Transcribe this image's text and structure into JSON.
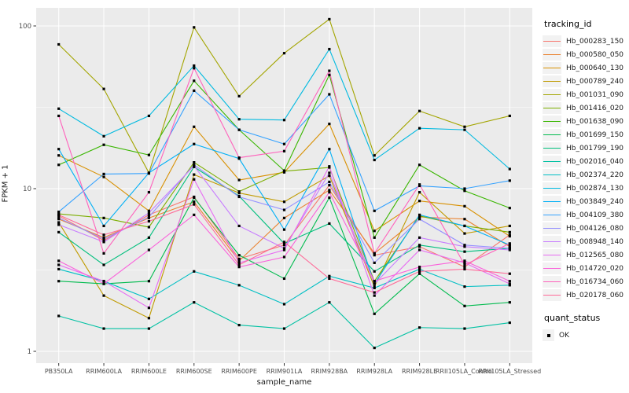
{
  "figure": {
    "xlabel": "sample_name",
    "ylabel": "FPKM + 1"
  },
  "legend": {
    "tracking_title": "tracking_id",
    "quant_title": "quant_status",
    "quant_items": [
      {
        "label": "OK",
        "marker": "black-square"
      }
    ]
  },
  "colors": {
    "panel_bg": "#EBEBEB",
    "grid": "#FFFFFF",
    "tick": "#333333",
    "tick_label": "#4D4D4D",
    "point": "#000000",
    "legend_key_bg": "#F2F2F2"
  },
  "chart_data": {
    "type": "line",
    "title": "",
    "xlabel": "sample_name",
    "ylabel": "FPKM + 1",
    "y_scale": "log10",
    "y_ticks": [
      1,
      10,
      100
    ],
    "y_minor_ticks": [
      3.162,
      31.62
    ],
    "ylim": [
      0.95,
      130
    ],
    "grid": "on",
    "legend_position": "right",
    "point_shape": "small black square (quant_status = OK at every point)",
    "x_categories": [
      "PB350LA",
      "RRIM600LA",
      "RRIM600LE",
      "RRIM600SE",
      "RRIM600PE",
      "RRIM901LA",
      "RRIM928BA",
      "RRIM928LA",
      "RRIM928LE",
      "RRII105LA_Control",
      "RRII105LA_Stressed"
    ],
    "series": [
      {
        "name": "Hb_000283_150",
        "color": "#F8766D",
        "values": [
          6.8,
          4.8,
          6.9,
          8.9,
          3.7,
          4.5,
          10.5,
          3.9,
          4.4,
          3.3,
          5.2
        ]
      },
      {
        "name": "Hb_000580_050",
        "color": "#EA8331",
        "values": [
          6.5,
          5.0,
          6.6,
          8.3,
          3.6,
          6.6,
          9.8,
          4.0,
          6.7,
          6.5,
          4.4
        ]
      },
      {
        "name": "Hb_000640_130",
        "color": "#D89000",
        "values": [
          16,
          11.8,
          7.3,
          24,
          11.3,
          12.6,
          25,
          5.5,
          8.4,
          7.8,
          5.1
        ]
      },
      {
        "name": "Hb_000789_240",
        "color": "#C09B00",
        "values": [
          6.2,
          2.2,
          1.6,
          12.2,
          9.4,
          8.3,
          12,
          2.5,
          9.5,
          5.3,
          5.9
        ]
      },
      {
        "name": "Hb_001031_090",
        "color": "#A3A500",
        "values": [
          77,
          41,
          12.5,
          98,
          37,
          68,
          110,
          16,
          30,
          24,
          28
        ]
      },
      {
        "name": "Hb_001416_020",
        "color": "#7CAE00",
        "values": [
          7.0,
          6.6,
          5.8,
          14.5,
          9.6,
          12.8,
          13.5,
          2.7,
          6.8,
          5.9,
          5.4
        ]
      },
      {
        "name": "Hb_001638_090",
        "color": "#39B600",
        "values": [
          14,
          18.6,
          16.1,
          46,
          23,
          12.9,
          50,
          5.0,
          14,
          9.7,
          7.6
        ]
      },
      {
        "name": "Hb_001699_150",
        "color": "#00BB4E",
        "values": [
          2.7,
          2.6,
          2.7,
          8.8,
          3.9,
          2.8,
          8.8,
          1.7,
          3.0,
          1.9,
          2.0
        ]
      },
      {
        "name": "Hb_001799_190",
        "color": "#00BF7D",
        "values": [
          5.4,
          3.4,
          5.0,
          13.6,
          9.0,
          4.6,
          6.1,
          3.1,
          4.5,
          4.1,
          4.3
        ]
      },
      {
        "name": "Hb_002016_040",
        "color": "#00C1A3",
        "values": [
          1.65,
          1.38,
          1.38,
          2.0,
          1.45,
          1.38,
          2.0,
          1.05,
          1.4,
          1.38,
          1.5
        ]
      },
      {
        "name": "Hb_002374_220",
        "color": "#00BFC4",
        "values": [
          3.2,
          2.7,
          2.1,
          3.1,
          2.55,
          1.95,
          2.9,
          2.45,
          3.2,
          2.5,
          2.55
        ]
      },
      {
        "name": "Hb_002874_130",
        "color": "#00BAE0",
        "values": [
          31,
          21,
          28,
          57,
          26.7,
          26.4,
          72,
          15,
          23.5,
          23,
          13.2
        ]
      },
      {
        "name": "Hb_003849_240",
        "color": "#00B0F6",
        "values": [
          17.5,
          5.9,
          12.5,
          18.8,
          15.3,
          5.6,
          17.5,
          2.6,
          6.9,
          5.9,
          4.5
        ]
      },
      {
        "name": "Hb_004109_380",
        "color": "#35A2FF",
        "values": [
          7.2,
          12.3,
          12.4,
          40,
          23,
          18.8,
          38,
          7.3,
          10.4,
          10,
          11.2
        ]
      },
      {
        "name": "Hb_004126_080",
        "color": "#9590FF",
        "values": [
          6.6,
          4.9,
          6.7,
          14,
          8.9,
          7.4,
          11,
          3.5,
          6.5,
          4.5,
          4.3
        ]
      },
      {
        "name": "Hb_008948_140",
        "color": "#C77CFF",
        "values": [
          6.0,
          4.7,
          7.1,
          13.8,
          5.9,
          4.3,
          12.5,
          2.6,
          5.0,
          4.4,
          4.2
        ]
      },
      {
        "name": "Hb_012565_080",
        "color": "#E76BF3",
        "values": [
          3.4,
          2.7,
          1.85,
          11.4,
          3.5,
          4.2,
          13.7,
          2.2,
          4.2,
          3.5,
          2.6
        ]
      },
      {
        "name": "Hb_014720_020",
        "color": "#FA62DB",
        "values": [
          3.6,
          2.6,
          4.2,
          6.9,
          3.3,
          3.8,
          9.5,
          2.7,
          3.3,
          3.6,
          2.7
        ]
      },
      {
        "name": "Hb_016734_060",
        "color": "#FF62BC",
        "values": [
          28,
          4.0,
          9.5,
          55,
          15.5,
          17,
          53,
          4.0,
          10.6,
          3.4,
          4.6
        ]
      },
      {
        "name": "Hb_020178_060",
        "color": "#FF6A98",
        "values": [
          6.9,
          5.2,
          6.3,
          8.0,
          3.4,
          4.7,
          2.8,
          2.3,
          3.1,
          3.2,
          3.0
        ]
      }
    ]
  }
}
